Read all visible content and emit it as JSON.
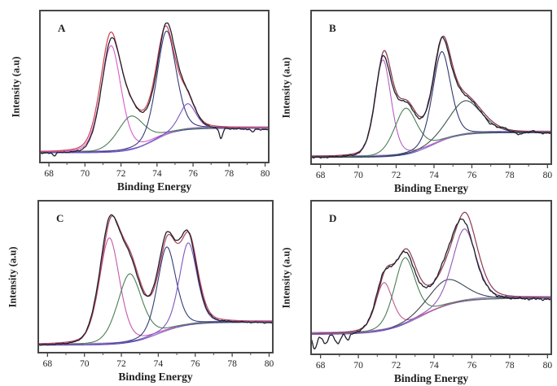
{
  "figure": {
    "description": "Four-panel fitted XPS spectra",
    "background": "#ffffff"
  },
  "axis_style": {
    "frame_color": "#474747",
    "tick_color": "#474747",
    "label_color": "#1f1f1f"
  },
  "chart_data": [
    {
      "panel": "A",
      "type": "line",
      "xlabel": "Binding Energy",
      "ylabel": "Intensity (a.u)",
      "x_range": [
        67.5,
        80.2
      ],
      "x_ticks": [
        68,
        70,
        72,
        74,
        76,
        78,
        80
      ],
      "x_minor_ticks": [
        69,
        71,
        73,
        75,
        77,
        79
      ],
      "y_ticks": [],
      "baseline": {
        "low": 0.065,
        "high": 0.225,
        "center": 73.8,
        "width": 0.65
      },
      "series": [
        {
          "name": "background-baseline-blue",
          "role": "baseline",
          "color": "#3c3fae",
          "dx": 0,
          "dy": 0
        },
        {
          "name": "background-baseline-violet",
          "role": "baseline",
          "color": "#a27fd0",
          "dx": -0.2,
          "dy": 0.01
        },
        {
          "name": "component-peak-1",
          "role": "component",
          "color": "#d85ccb",
          "center": 71.45,
          "sigma": 0.58,
          "height": 0.7
        },
        {
          "name": "component-peak-2",
          "role": "component",
          "color": "#4d7d55",
          "center": 72.55,
          "sigma": 0.78,
          "height": 0.22
        },
        {
          "name": "component-peak-3",
          "role": "component",
          "color": "#333b7a",
          "center": 74.52,
          "sigma": 0.56,
          "height": 0.68
        },
        {
          "name": "component-peak-4",
          "role": "component",
          "color": "#7b58c8",
          "center": 75.7,
          "sigma": 0.48,
          "height": 0.17
        },
        {
          "name": "fit-envelope",
          "role": "envelope",
          "color": "#ce4557",
          "dx": -0.05
        },
        {
          "name": "raw-data",
          "role": "data",
          "color": "#20202c",
          "offset": -0.012,
          "noise": 0.003,
          "adjust": [
            {
              "center": 74.78,
              "sigma": 0.5,
              "height": 0.035
            },
            {
              "center": 71.15,
              "sigma": 0.9,
              "height": -0.025
            },
            {
              "center": 77.55,
              "sigma": 0.09,
              "height": -0.07
            },
            {
              "center": 68.3,
              "sigma": 0.07,
              "height": -0.02
            },
            {
              "center": 79.3,
              "sigma": 0.07,
              "height": -0.02
            }
          ]
        }
      ]
    },
    {
      "panel": "B",
      "type": "line",
      "xlabel": "Binding Energy",
      "ylabel": "Intensity (a.u)",
      "x_range": [
        67.5,
        80.2
      ],
      "x_ticks": [
        68,
        70,
        72,
        74,
        76,
        78,
        80
      ],
      "x_minor_ticks": [
        69,
        71,
        73,
        75,
        77,
        79
      ],
      "y_ticks": [],
      "baseline": {
        "low": 0.045,
        "high": 0.205,
        "center": 73.9,
        "width": 0.7
      },
      "series": [
        {
          "name": "background-baseline-blue",
          "role": "baseline",
          "color": "#3c3fae",
          "dx": 0,
          "dy": 0
        },
        {
          "name": "background-baseline-violet",
          "role": "baseline",
          "color": "#a27fd0",
          "dx": -0.2,
          "dy": 0.01
        },
        {
          "name": "component-peak-1",
          "role": "component",
          "color": "#b75ec5",
          "center": 71.3,
          "sigma": 0.45,
          "height": 0.63
        },
        {
          "name": "component-peak-2",
          "role": "component",
          "color": "#4d7d55",
          "center": 72.5,
          "sigma": 0.62,
          "height": 0.3
        },
        {
          "name": "component-peak-3",
          "role": "component",
          "color": "#2f3870",
          "center": 74.4,
          "sigma": 0.5,
          "height": 0.58
        },
        {
          "name": "component-peak-4",
          "role": "component",
          "color": "#3a544c",
          "center": 75.65,
          "sigma": 0.9,
          "height": 0.22
        },
        {
          "name": "fit-envelope",
          "role": "envelope",
          "color": "#86384c",
          "dx": 0.04
        },
        {
          "name": "raw-data",
          "role": "data",
          "color": "#20202c",
          "offset": -0.008,
          "noise": 0.004,
          "adjust": [
            {
              "center": 71.3,
              "sigma": 0.4,
              "height": -0.025
            },
            {
              "center": 76.9,
              "sigma": 0.12,
              "height": -0.018
            },
            {
              "center": 77.7,
              "sigma": 0.12,
              "height": 0.014
            },
            {
              "center": 78.5,
              "sigma": 0.12,
              "height": -0.018
            },
            {
              "center": 79.2,
              "sigma": 0.12,
              "height": 0.012
            }
          ]
        }
      ]
    },
    {
      "panel": "C",
      "type": "line",
      "xlabel": "Binding Energy",
      "ylabel": "Intensity (a.u)",
      "x_range": [
        67.5,
        80.2
      ],
      "x_ticks": [
        68,
        70,
        72,
        74,
        76,
        78,
        80
      ],
      "x_minor_ticks": [
        69,
        71,
        73,
        75,
        77,
        79
      ],
      "y_ticks": [],
      "baseline": {
        "low": 0.05,
        "high": 0.2,
        "center": 74.0,
        "width": 0.8
      },
      "series": [
        {
          "name": "background-baseline-blue",
          "role": "baseline",
          "color": "#3c3fae",
          "dx": 0,
          "dy": 0
        },
        {
          "name": "background-baseline-violet",
          "role": "baseline",
          "color": "#a27fd0",
          "dx": -0.2,
          "dy": 0.01
        },
        {
          "name": "component-peak-1",
          "role": "component",
          "color": "#c358ae",
          "center": 71.35,
          "sigma": 0.58,
          "height": 0.7
        },
        {
          "name": "component-peak-2",
          "role": "component",
          "color": "#4d7d55",
          "center": 72.45,
          "sigma": 0.68,
          "height": 0.45
        },
        {
          "name": "component-peak-3",
          "role": "component",
          "color": "#333b7a",
          "center": 74.45,
          "sigma": 0.52,
          "height": 0.55
        },
        {
          "name": "component-peak-4",
          "role": "component",
          "color": "#7e56bc",
          "center": 75.62,
          "sigma": 0.5,
          "height": 0.54
        },
        {
          "name": "fit-envelope",
          "role": "envelope",
          "color": "#b4475f",
          "dx": 0.05
        },
        {
          "name": "raw-data",
          "role": "data",
          "color": "#20202c",
          "offset": -0.008,
          "noise": 0.003,
          "adjust": [
            {
              "center": 71.35,
              "sigma": 0.55,
              "height": 0.018
            },
            {
              "center": 74.75,
              "sigma": 0.9,
              "height": 0.03
            }
          ]
        }
      ]
    },
    {
      "panel": "D",
      "type": "line",
      "xlabel": "Binding Energy",
      "ylabel": "Intensity (a.u)",
      "x_range": [
        67.5,
        80.2
      ],
      "x_ticks": [
        68,
        70,
        72,
        74,
        76,
        78,
        80
      ],
      "x_minor_ticks": [
        69,
        71,
        73,
        75,
        77,
        79
      ],
      "y_ticks": [],
      "baseline": {
        "low": 0.13,
        "high": 0.365,
        "center": 73.3,
        "width": 0.95
      },
      "series": [
        {
          "name": "background-baseline-blue",
          "role": "baseline",
          "color": "#3c3fae",
          "dx": 0,
          "dy": 0
        },
        {
          "name": "background-baseline-violet",
          "role": "baseline",
          "color": "#9b7fd0",
          "dx": -0.2,
          "dy": 0.012
        },
        {
          "name": "component-peak-1",
          "role": "component",
          "color": "#c05c8e",
          "center": 71.35,
          "sigma": 0.48,
          "height": 0.31
        },
        {
          "name": "component-peak-2",
          "role": "component",
          "color": "#4d7d55",
          "center": 72.45,
          "sigma": 0.58,
          "height": 0.43
        },
        {
          "name": "component-peak-3",
          "role": "component",
          "color": "#3a4450",
          "center": 74.65,
          "sigma": 1.0,
          "height": 0.165
        },
        {
          "name": "component-peak-4",
          "role": "component",
          "color": "#9258b6",
          "center": 75.6,
          "sigma": 0.65,
          "height": 0.47
        },
        {
          "name": "fit-envelope",
          "role": "envelope",
          "color": "#8e4156",
          "dx": 0.08
        },
        {
          "name": "raw-data",
          "role": "data",
          "color": "#20202c",
          "offset": -0.012,
          "noise": 0.006,
          "adjust": [
            {
              "center": 67.7,
              "sigma": 0.12,
              "height": -0.09
            },
            {
              "center": 68.25,
              "sigma": 0.13,
              "height": -0.055
            },
            {
              "center": 68.9,
              "sigma": 0.13,
              "height": -0.06
            },
            {
              "center": 69.45,
              "sigma": 0.1,
              "height": -0.045
            },
            {
              "center": 74.9,
              "sigma": 0.5,
              "height": 0.03
            },
            {
              "center": 75.9,
              "sigma": 0.6,
              "height": -0.055
            }
          ]
        }
      ]
    }
  ]
}
